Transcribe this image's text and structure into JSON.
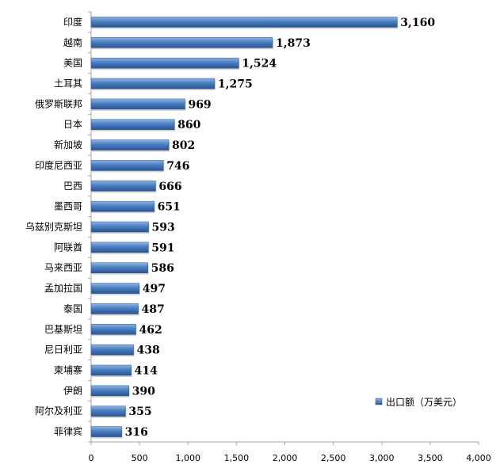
{
  "chart_data": {
    "type": "bar",
    "orientation": "horizontal",
    "categories": [
      "印度",
      "越南",
      "美国",
      "土耳其",
      "俄罗斯联邦",
      "日本",
      "新加坡",
      "印度尼西亚",
      "巴西",
      "墨西哥",
      "乌兹别克斯坦",
      "阿联酋",
      "马来西亚",
      "孟加拉国",
      "泰国",
      "巴基斯坦",
      "尼日利亚",
      "柬埔寨",
      "伊朗",
      "阿尔及利亚",
      "菲律宾"
    ],
    "series": [
      {
        "name": "出口额（万美元）",
        "values": [
          3160,
          1873,
          1524,
          1275,
          969,
          860,
          802,
          746,
          666,
          651,
          593,
          591,
          586,
          497,
          487,
          462,
          438,
          414,
          390,
          355,
          316
        ],
        "value_labels": [
          "3,160",
          "1,873",
          "1,524",
          "1,275",
          "969",
          "860",
          "802",
          "746",
          "666",
          "651",
          "593",
          "591",
          "586",
          "497",
          "487",
          "462",
          "438",
          "414",
          "390",
          "355",
          "316"
        ]
      }
    ],
    "x_ticks": [
      "0",
      "500",
      "1,000",
      "1,500",
      "2,000",
      "2,500",
      "3,000",
      "3,500",
      "4,000"
    ],
    "xlim": [
      0,
      4000
    ],
    "title": "",
    "xlabel": "",
    "ylabel": "",
    "grid": false,
    "legend_position": "bottom-right",
    "colors": {
      "bar_fill": "#4a7fc1",
      "bar_dark": "#2a5592",
      "bar_light": "#8fb4e3",
      "axis": "#a6a6a6"
    }
  }
}
